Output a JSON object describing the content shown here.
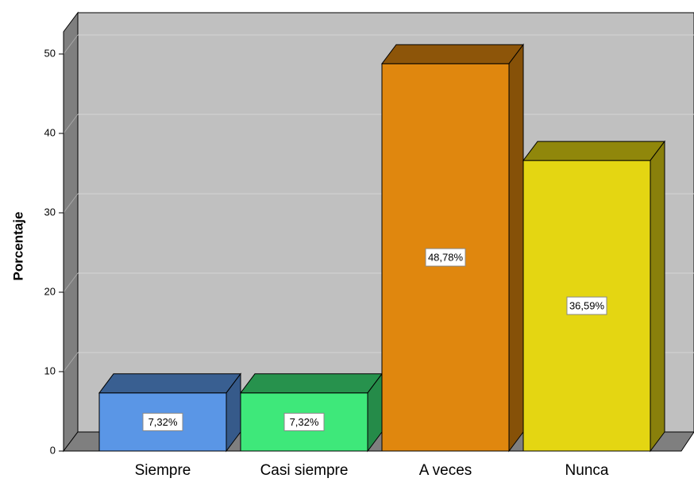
{
  "chart_data": {
    "type": "bar3d",
    "y_label": "Porcentaje",
    "categories": [
      "Siempre",
      "Casi siempre",
      "A veces",
      "Nunca"
    ],
    "values": [
      7.32,
      7.32,
      48.78,
      36.59
    ],
    "value_labels": [
      "7,32%",
      "7,32%",
      "48,78%",
      "36,59%"
    ],
    "colors": [
      "#5a96e6",
      "#3ee87a",
      "#e0870e",
      "#e4d612"
    ],
    "ylim": [
      0,
      52.8
    ],
    "yticks": [
      0,
      10,
      20,
      30,
      40,
      50
    ],
    "grid": true
  }
}
